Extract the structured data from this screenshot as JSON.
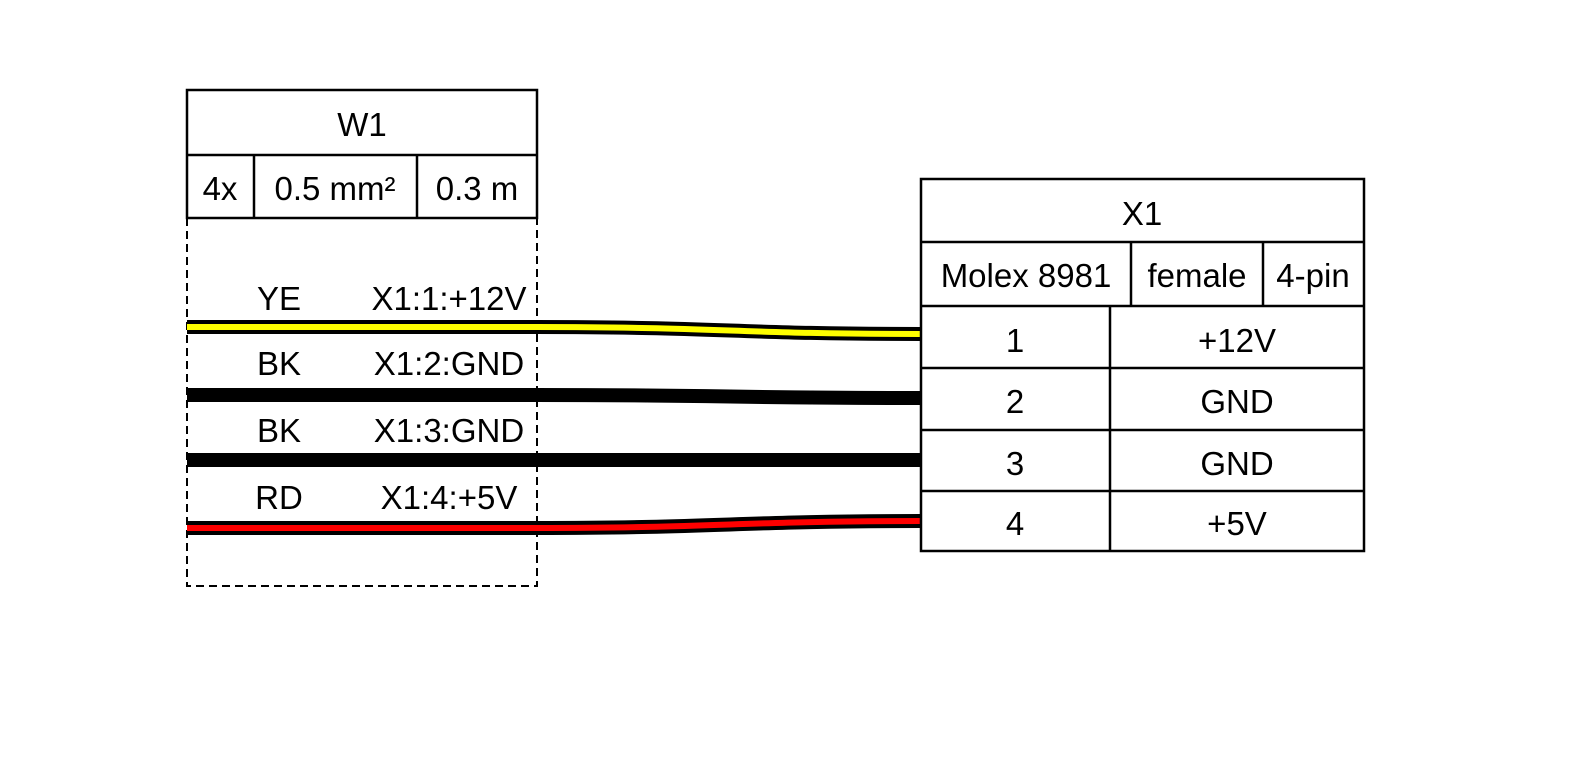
{
  "cable": {
    "title": "W1",
    "count": "4x",
    "gauge": "0.5 mm²",
    "length": "0.3 m",
    "wires": [
      {
        "color_code": "YE",
        "label": "X1:1:+12V",
        "color": "#ffff00"
      },
      {
        "color_code": "BK",
        "label": "X1:2:GND",
        "color": "#000000"
      },
      {
        "color_code": "BK",
        "label": "X1:3:GND",
        "color": "#000000"
      },
      {
        "color_code": "RD",
        "label": "X1:4:+5V",
        "color": "#ff0000"
      }
    ]
  },
  "connector": {
    "title": "X1",
    "type": "Molex 8981",
    "gender": "female",
    "pincount": "4-pin",
    "pins": [
      {
        "pin": "1",
        "label": "+12V"
      },
      {
        "pin": "2",
        "label": "GND"
      },
      {
        "pin": "3",
        "label": "GND"
      },
      {
        "pin": "4",
        "label": "+5V"
      }
    ]
  }
}
